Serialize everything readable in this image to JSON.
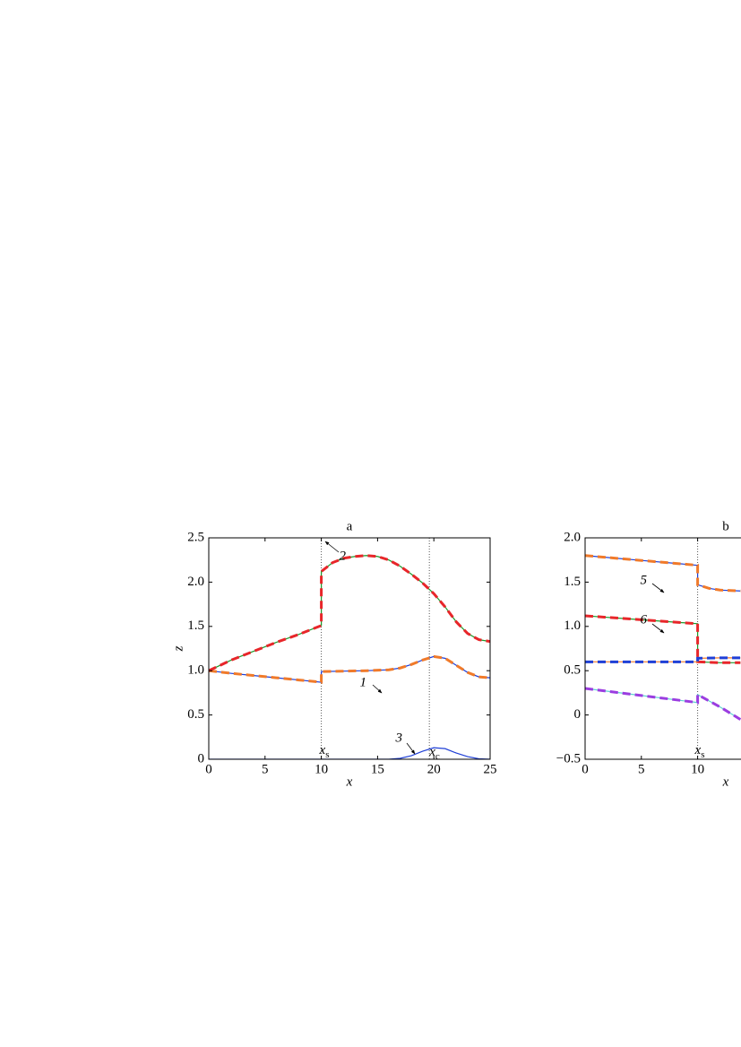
{
  "chart_data": [
    {
      "type": "line",
      "title": "a",
      "xlabel": "x",
      "ylabel": "z",
      "xlim": [
        0,
        25
      ],
      "ylim": [
        0,
        2.5
      ],
      "xticks": [
        0,
        5,
        10,
        15,
        20,
        25
      ],
      "yticks": [
        0,
        0.5,
        {
          "value": 1,
          "label": "1.0"
        },
        1.5,
        {
          "value": 2,
          "label": "2.0"
        },
        2.5
      ],
      "vlines": [
        {
          "value": 10,
          "label": "x",
          "sub": "s"
        },
        {
          "value": 19.6,
          "label": "x",
          "sub": "c"
        }
      ],
      "annotations": [
        "1",
        "2",
        "3"
      ],
      "series": [
        {
          "color": "#1f3fd6",
          "dash_color": "#f07a2a",
          "x": [
            0,
            2,
            4,
            6,
            8,
            10,
            10,
            12,
            14,
            16,
            17,
            18,
            19,
            20,
            21,
            22,
            23,
            24,
            25
          ],
          "values": [
            1.0,
            0.97,
            0.945,
            0.92,
            0.895,
            0.87,
            0.99,
            0.995,
            1.0,
            1.01,
            1.03,
            1.07,
            1.12,
            1.16,
            1.14,
            1.06,
            0.98,
            0.93,
            0.92
          ]
        },
        {
          "color": "#1c9a2c",
          "dash_color": "#e8262a",
          "x": [
            0,
            2,
            4,
            6,
            8,
            10,
            10,
            11,
            12,
            13,
            14,
            15,
            16,
            17,
            18,
            19,
            20,
            21,
            22,
            23,
            24,
            25
          ],
          "values": [
            1.0,
            1.12,
            1.22,
            1.32,
            1.41,
            1.51,
            2.12,
            2.22,
            2.27,
            2.29,
            2.3,
            2.29,
            2.25,
            2.18,
            2.09,
            1.99,
            1.87,
            1.72,
            1.55,
            1.42,
            1.35,
            1.33
          ]
        },
        {
          "color": "#1f3fd6",
          "x": [
            0,
            10,
            16,
            17,
            18,
            19,
            20,
            21,
            22,
            23,
            24,
            25
          ],
          "values": [
            0,
            0,
            0,
            0.01,
            0.04,
            0.09,
            0.13,
            0.12,
            0.07,
            0.03,
            0.005,
            0
          ]
        }
      ]
    },
    {
      "type": "line",
      "title": "b",
      "xlabel": "x",
      "xlim": [
        0,
        25
      ],
      "ylim": [
        -0.5,
        2.0
      ],
      "xticks": [
        0,
        5,
        10
      ],
      "yticks": [
        {
          "value": -0.5,
          "label": "−0.5"
        },
        0,
        0.5,
        {
          "value": 1,
          "label": "1.0"
        },
        1.5,
        {
          "value": 2,
          "label": "2.0"
        }
      ],
      "vlines": [
        {
          "value": 10,
          "label": "x",
          "sub": "s"
        }
      ],
      "annotations": [
        "5",
        "6"
      ],
      "series": [
        {
          "color": "#1f3fd6",
          "dash_color": "#f07a2a",
          "x": [
            0,
            5,
            10,
            10,
            11,
            12,
            13.8
          ],
          "values": [
            1.8,
            1.745,
            1.69,
            1.47,
            1.43,
            1.41,
            1.4
          ]
        },
        {
          "color": "#1c9a2c",
          "dash_color": "#e8262a",
          "x": [
            0,
            5,
            10,
            10,
            12,
            13.8
          ],
          "values": [
            1.12,
            1.075,
            1.03,
            0.6,
            0.59,
            0.59
          ]
        },
        {
          "color": "#f07a2a",
          "dash_color": "#1f3fd6",
          "x": [
            0,
            5,
            10,
            10,
            12,
            13.8
          ],
          "values": [
            0.6,
            0.6,
            0.6,
            0.64,
            0.645,
            0.645
          ]
        },
        {
          "color": "#5fd3d0",
          "dash_color": "#9b3de0",
          "x": [
            0,
            5,
            10,
            10,
            12,
            13.8
          ],
          "values": [
            0.3,
            0.22,
            0.14,
            0.23,
            0.09,
            -0.05
          ]
        }
      ]
    }
  ]
}
